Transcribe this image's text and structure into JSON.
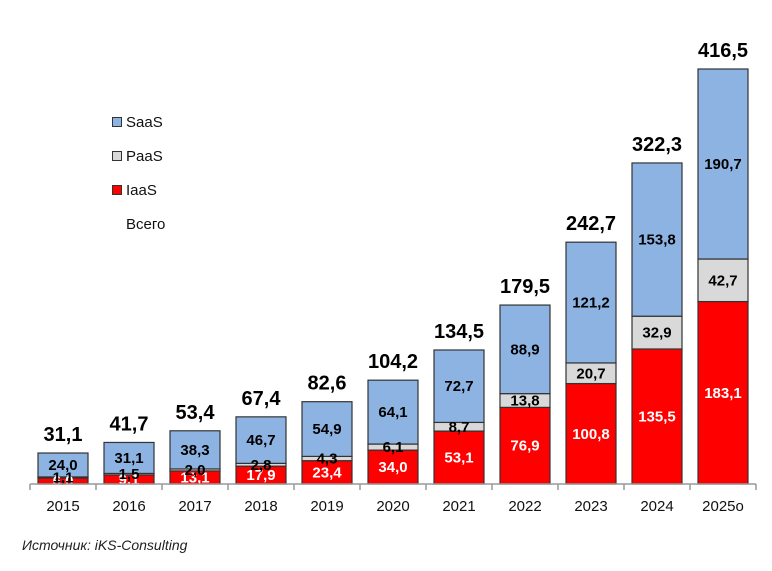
{
  "chart_data": {
    "type": "bar",
    "stacked": true,
    "title": "",
    "xlabel": "",
    "ylabel": "",
    "ylim": [
      0,
      420
    ],
    "grid": false,
    "legend_position": "top-left",
    "categories": [
      "2015",
      "2016",
      "2017",
      "2018",
      "2019",
      "2020",
      "2021",
      "2022",
      "2023",
      "2024",
      "2025o"
    ],
    "series": [
      {
        "name": "IaaS",
        "color": "#ff0000",
        "label_color": "#ffffff",
        "values": [
          6.0,
          9.1,
          13.1,
          17.9,
          23.4,
          34.0,
          53.1,
          76.9,
          100.8,
          135.5,
          183.1
        ],
        "labels": [
          "6,0",
          "9,1",
          "13,1",
          "17,9",
          "23,4",
          "34,0",
          "53,1",
          "76,9",
          "100,8",
          "135,5",
          "183,1"
        ]
      },
      {
        "name": "PaaS",
        "color": "#d9d9d9",
        "label_color": "#000000",
        "values": [
          1.1,
          1.5,
          2.0,
          2.8,
          4.3,
          6.1,
          8.7,
          13.8,
          20.7,
          32.9,
          42.7
        ],
        "labels": [
          "1,1",
          "1,5",
          "2,0",
          "2,8",
          "4,3",
          "6,1",
          "8,7",
          "13,8",
          "20,7",
          "32,9",
          "42,7"
        ]
      },
      {
        "name": "SaaS",
        "color": "#8db3e2",
        "label_color": "#000000",
        "values": [
          24.0,
          31.1,
          38.3,
          46.7,
          54.9,
          64.1,
          72.7,
          88.9,
          121.2,
          153.8,
          190.7
        ],
        "labels": [
          "24,0",
          "31,1",
          "38,3",
          "46,7",
          "54,9",
          "64,1",
          "72,7",
          "88,9",
          "121,2",
          "153,8",
          "190,7"
        ]
      }
    ],
    "totals": {
      "name": "Всего",
      "values": [
        31.1,
        41.7,
        53.4,
        67.4,
        82.6,
        104.2,
        134.5,
        179.5,
        242.7,
        322.3,
        416.5
      ],
      "labels": [
        "31,1",
        "41,7",
        "53,4",
        "67,4",
        "82,6",
        "104,2",
        "134,5",
        "179,5",
        "242,7",
        "322,3",
        "416,5"
      ]
    },
    "legend": [
      {
        "name": "SaaS",
        "color": "#8db3e2"
      },
      {
        "name": "PaaS",
        "color": "#d9d9d9"
      },
      {
        "name": "IaaS",
        "color": "#ff0000"
      },
      {
        "name": "Всего",
        "color": null
      }
    ],
    "source": "Источник: iKS-Consulting"
  }
}
